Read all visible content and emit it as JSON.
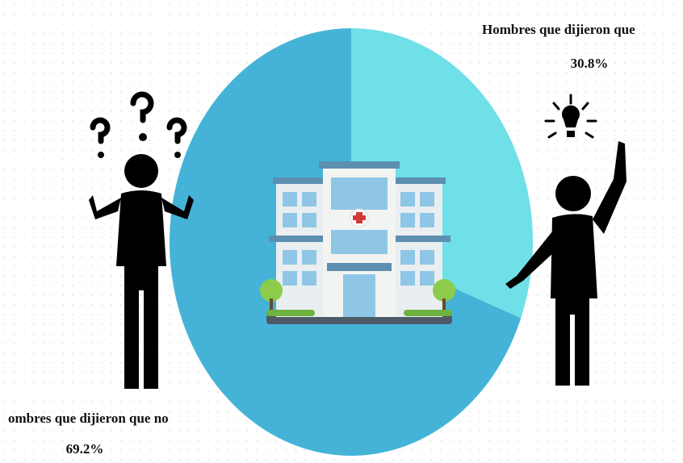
{
  "chart_data": {
    "type": "pie",
    "categories": [
      "Hombres que dijieron que",
      "ombres que dijieron que no"
    ],
    "values": [
      30.8,
      69.2
    ],
    "value_labels": [
      "30.8%",
      "69.2%"
    ],
    "colors": [
      "#6fdfe8",
      "#45b3d8"
    ]
  }
}
